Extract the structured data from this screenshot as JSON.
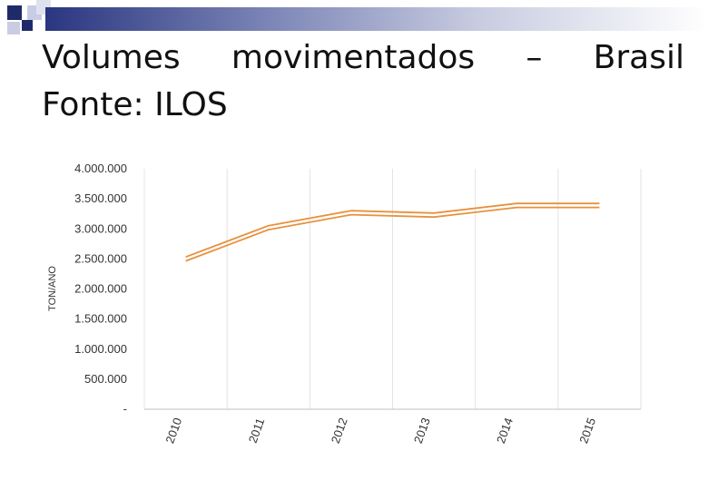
{
  "slide": {
    "title_words": [
      "Volumes",
      "movimentados",
      "–",
      "Brasil"
    ],
    "subtitle": "Fonte: ILOS"
  },
  "colors": {
    "accent_dark": "#1f2a6b",
    "accent_light": "#c9cde3",
    "line": "#e8913e",
    "grid": "#e3e3e3"
  },
  "chart_data": {
    "type": "line",
    "title": "",
    "xlabel": "",
    "ylabel": "TON/ANO",
    "categories": [
      "2010",
      "2011",
      "2012",
      "2013",
      "2014",
      "2015"
    ],
    "values": [
      2500000,
      3020000,
      3270000,
      3230000,
      3390000,
      3390000
    ],
    "ylim": [
      0,
      4000000
    ],
    "y_ticks": [
      0,
      500000,
      1000000,
      1500000,
      2000000,
      2500000,
      3000000,
      3500000,
      4000000
    ],
    "y_tick_labels": [
      "-",
      "500.000",
      "1.000.000",
      "1.500.000",
      "2.000.000",
      "2.500.000",
      "3.000.000",
      "3.500.000",
      "4.000.000"
    ],
    "grid": true,
    "legend": "none"
  }
}
